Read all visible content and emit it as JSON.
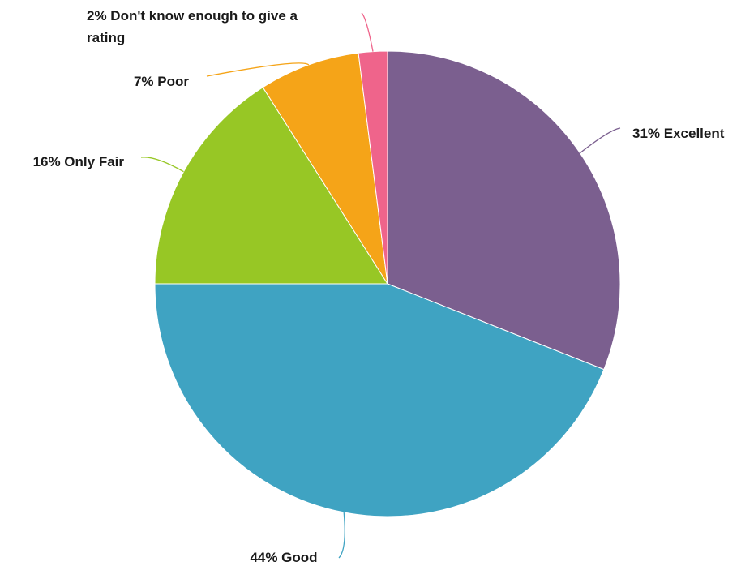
{
  "chart_data": {
    "type": "pie",
    "title": "",
    "slices": [
      {
        "label": "Excellent",
        "value": 31,
        "display": "31% Excellent",
        "color": "#7b5f8f"
      },
      {
        "label": "Good",
        "value": 44,
        "display": "44% Good",
        "color": "#3fa3c2"
      },
      {
        "label": "Only Fair",
        "value": 16,
        "display": "16% Only Fair",
        "color": "#97c725"
      },
      {
        "label": "Poor",
        "value": 7,
        "display": "7% Poor",
        "color": "#f5a418"
      },
      {
        "label": "Don't know enough to give a rating",
        "value": 2,
        "display_lines": [
          "2% Don't know enough to give a",
          "rating"
        ],
        "color": "#ef648b"
      }
    ]
  }
}
